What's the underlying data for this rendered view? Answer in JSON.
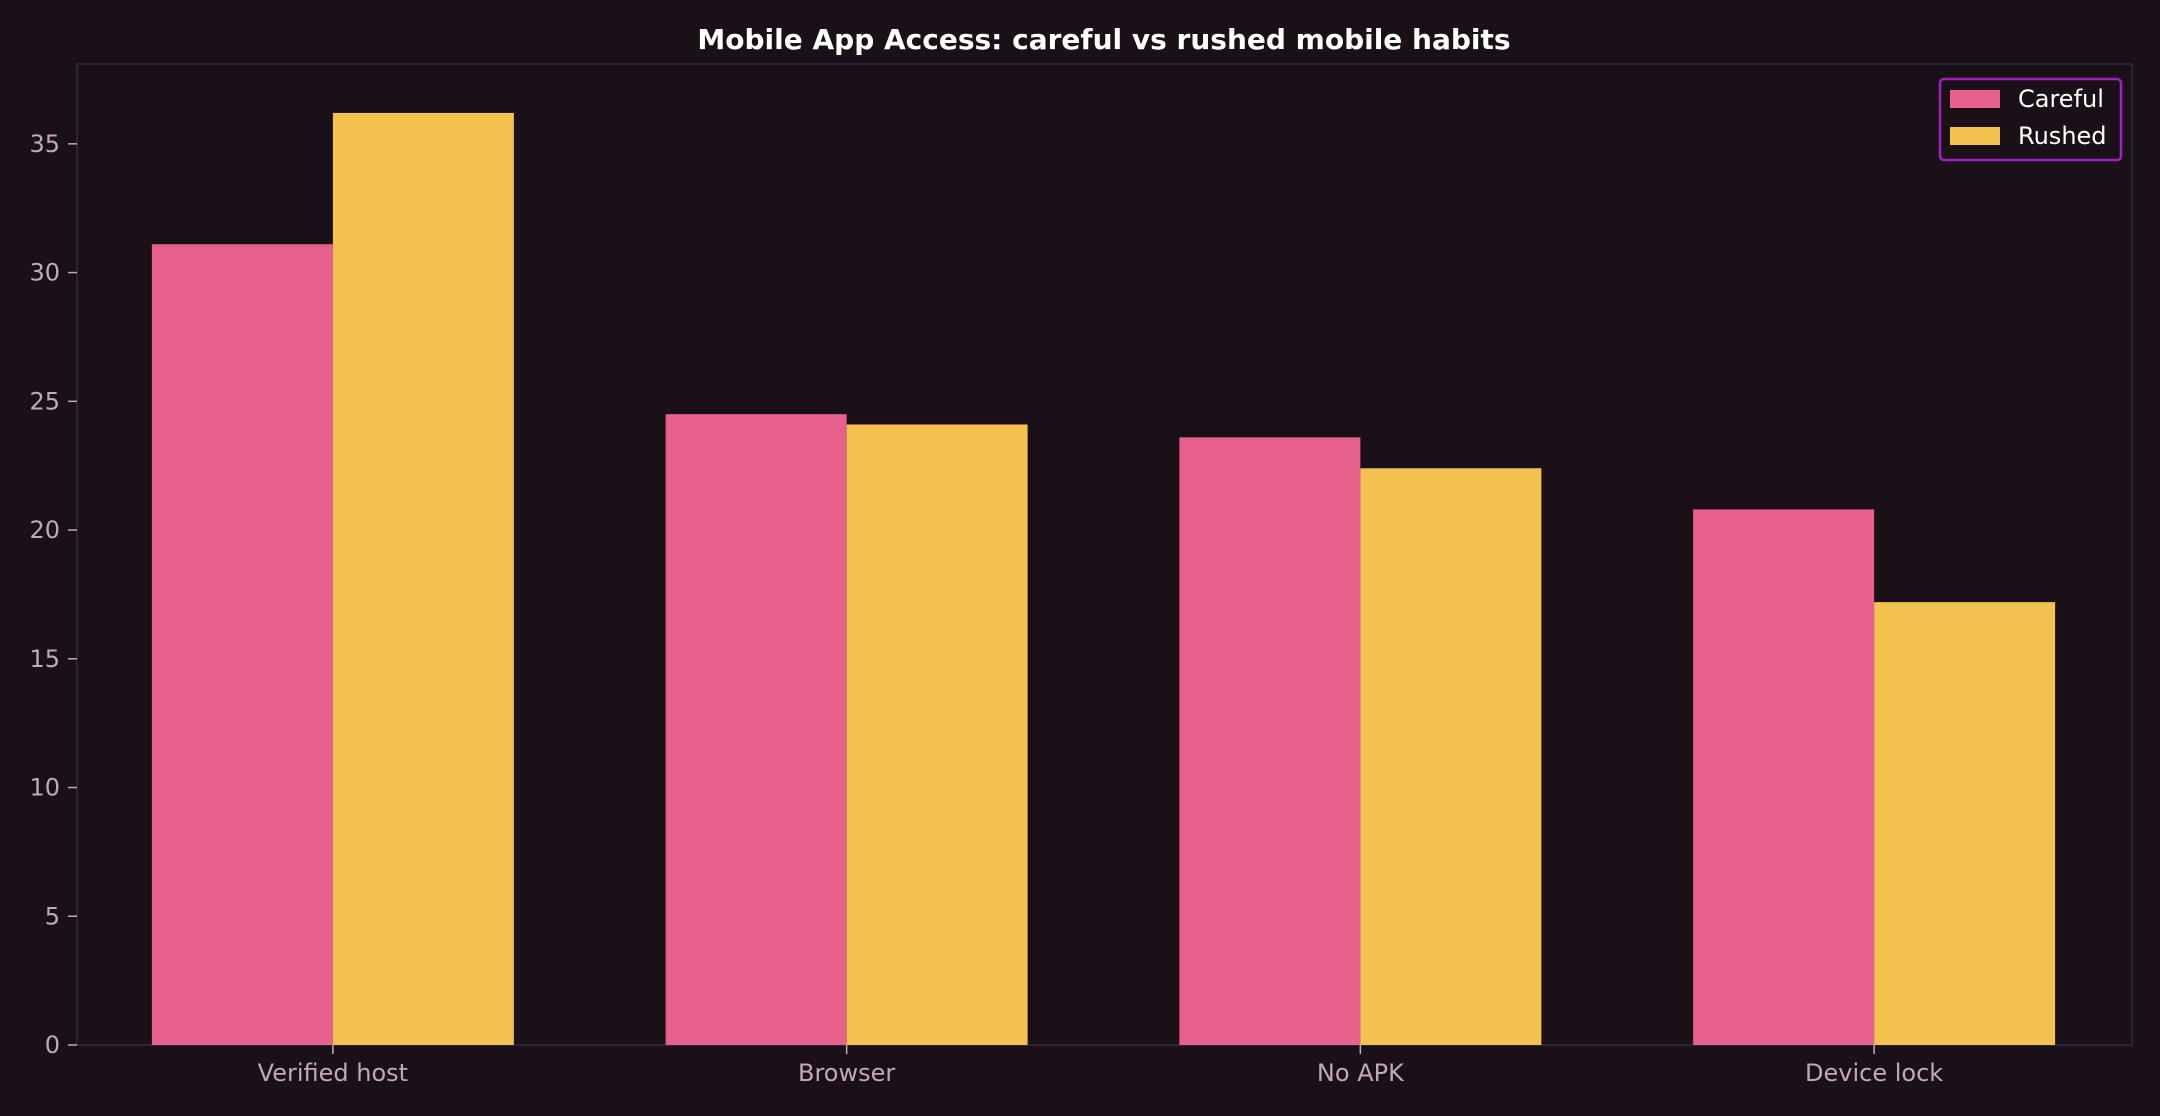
{
  "chart_data": {
    "type": "bar",
    "title": "Mobile App Access: careful vs rushed mobile habits",
    "xlabel": "",
    "ylabel": "",
    "categories": [
      "Verified host",
      "Browser",
      "No APK",
      "Device lock"
    ],
    "series": [
      {
        "name": "Careful",
        "color": "#e8608c",
        "values": [
          31.1,
          24.5,
          23.6,
          20.8
        ]
      },
      {
        "name": "Rushed",
        "color": "#f2c14e",
        "values": [
          36.2,
          24.1,
          22.4,
          17.2
        ]
      }
    ],
    "ylim": [
      0,
      38.1
    ],
    "yticks": [
      0,
      5,
      10,
      15,
      20,
      25,
      30,
      35
    ],
    "grid": false,
    "legend_position": "top-right",
    "colors": {
      "background": "#1a1018",
      "axes_frame": "#2e2a48",
      "tick_text": "#c4a8b6",
      "title_text": "#ffffff",
      "legend_border": "#a020c0"
    }
  }
}
